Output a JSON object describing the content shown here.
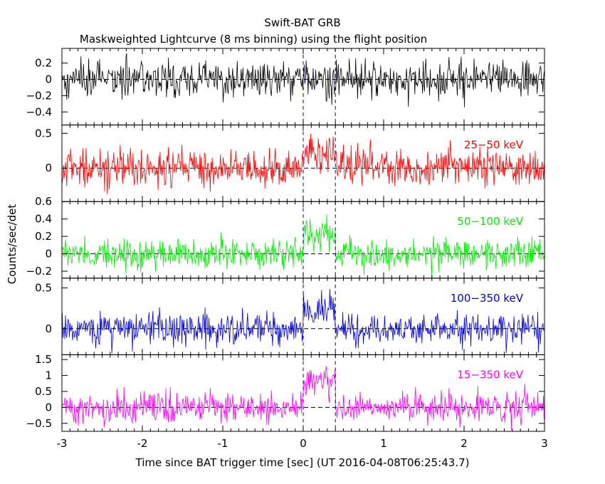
{
  "title": "Swift-BAT GRB",
  "subtitle": "Maskweighted Lightcurve (8 ms binning) using the flight position",
  "ylabel": "Counts/sec/det",
  "xlabel": "Time since BAT trigger time [sec] (UT 2016-04-08T06:25:43.7)",
  "chart_data": {
    "type": "line",
    "xlim": [
      -3.0,
      3.0
    ],
    "bin_width": 0.008,
    "x_ticks": [
      "-3",
      "-2",
      "-1",
      "0",
      "1",
      "2",
      "3"
    ],
    "x_tick_values": [
      -3,
      -2,
      -1,
      0,
      1,
      2,
      3
    ],
    "vlines": [
      0.0,
      0.4
    ],
    "series": [
      {
        "name": "",
        "color": "#000000",
        "ylim": [
          -0.56,
          0.38
        ],
        "yticks": [
          0.2,
          0,
          -0.2,
          -0.4
        ],
        "ytick_labels": [
          "0.2",
          "0",
          "−0.2",
          "−0.4"
        ],
        "noise_sigma": 0.11,
        "burst": []
      },
      {
        "name": "25−50 keV",
        "color": "#ff0000",
        "ylim": [
          -0.48,
          0.62
        ],
        "yticks": [
          0.5,
          0
        ],
        "ytick_labels": [
          "0.5",
          "0"
        ],
        "noise_sigma": 0.13,
        "burst": [
          [
            0.0,
            0.4,
            0.2
          ]
        ]
      },
      {
        "name": "50−100 keV",
        "color": "#00ee00",
        "ylim": [
          -0.28,
          0.6
        ],
        "yticks": [
          0.6,
          0.4,
          0.2,
          0,
          -0.2
        ],
        "ytick_labels": [
          "0.6",
          "0.4",
          "0.2",
          "0",
          "−0.2"
        ],
        "noise_sigma": 0.085,
        "burst": [
          [
            0.0,
            0.4,
            0.23
          ]
        ]
      },
      {
        "name": "100−350 keV",
        "color": "#0000dd",
        "ylim": [
          -0.32,
          0.62
        ],
        "yticks": [
          0.5,
          0
        ],
        "ytick_labels": [
          "0.5",
          "0"
        ],
        "noise_sigma": 0.1,
        "burst": [
          [
            0.0,
            0.4,
            0.22
          ]
        ]
      },
      {
        "name": "15−350 keV",
        "color": "#ff00ff",
        "ylim": [
          -0.75,
          1.65
        ],
        "yticks": [
          1.5,
          1,
          0.5,
          0,
          -0.5
        ],
        "ytick_labels": [
          "1.5",
          "1",
          "0.5",
          "0",
          "−0.5"
        ],
        "noise_sigma": 0.22,
        "burst": [
          [
            0.0,
            0.4,
            0.85
          ]
        ]
      }
    ]
  }
}
